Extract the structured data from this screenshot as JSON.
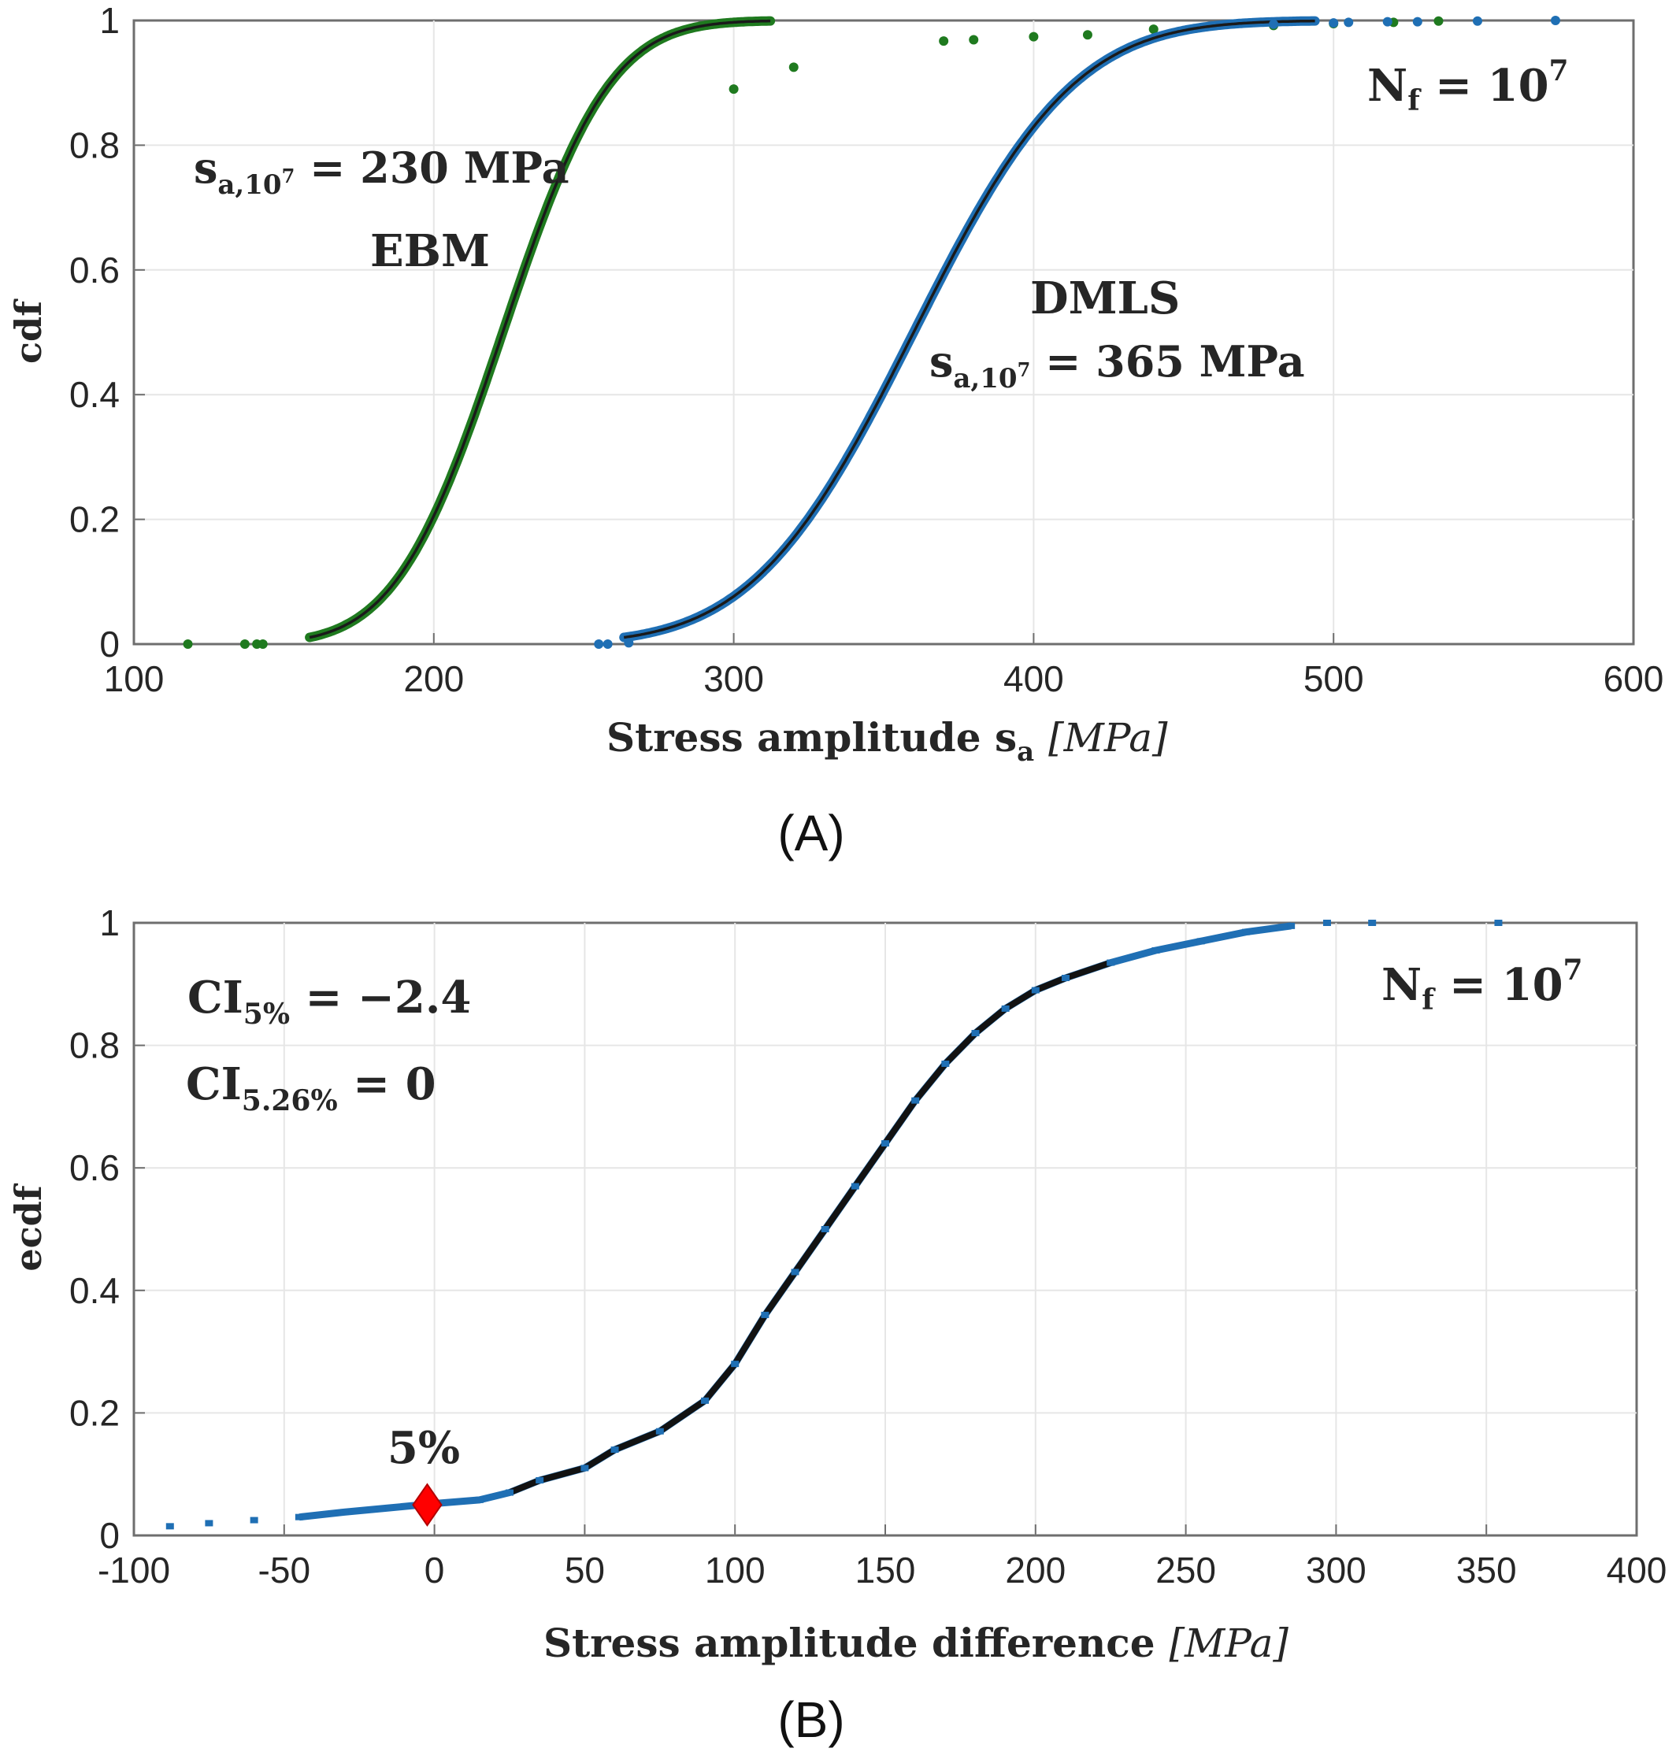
{
  "chart_data": [
    {
      "type": "scatter",
      "panel_label": "(A)",
      "xlabel": "Stress amplitude s",
      "xlabel_sub": "a",
      "xlabel_unit": "[MPa]",
      "ylabel": "cdf",
      "xlim": [
        100,
        600
      ],
      "ylim": [
        0,
        1
      ],
      "x_ticks": [
        100,
        200,
        300,
        400,
        500,
        600
      ],
      "y_ticks": [
        0,
        0.2,
        0.4,
        0.6,
        0.8,
        1
      ],
      "x_tick_labels": [
        "100",
        "200",
        "300",
        "400",
        "500",
        "600"
      ],
      "y_tick_labels": [
        "0",
        "0.2",
        "0.4",
        "0.6",
        "0.8",
        "1"
      ],
      "grid": true,
      "annotations": {
        "nf": {
          "main": "N",
          "sub": "f",
          "eq": " = 10",
          "sup": "7"
        },
        "ebm_value": {
          "main": "s",
          "sub": "a,10",
          "subsup": "7",
          "eq": " = 230 MPa"
        },
        "ebm_label": "EBM",
        "dmls_label": "DMLS",
        "dmls_value": {
          "main": "s",
          "sub": "a,10",
          "subsup": "7",
          "eq": " = 365 MPa"
        }
      },
      "series": [
        {
          "name": "EBM",
          "color": "#1f7a1f",
          "distribution": {
            "mean": 223,
            "std": 28
          },
          "outliers": [
            [
              118,
              0.0
            ],
            [
              137,
              0.0
            ],
            [
              141,
              0.0
            ],
            [
              143,
              0.0
            ],
            [
              300,
              0.89
            ],
            [
              320,
              0.925
            ],
            [
              370,
              0.967
            ],
            [
              380,
              0.969
            ],
            [
              400,
              0.974
            ],
            [
              418,
              0.977
            ],
            [
              440,
              0.986
            ],
            [
              480,
              0.992
            ],
            [
              500,
              0.995
            ],
            [
              520,
              0.997
            ],
            [
              535,
              0.999
            ]
          ]
        },
        {
          "name": "DMLS",
          "color": "#1f6fb4",
          "distribution": {
            "mean": 360,
            "std": 42
          },
          "outliers": [
            [
              255,
              0.0
            ],
            [
              258,
              0.0
            ],
            [
              265,
              0.002
            ],
            [
              480,
              0.994
            ],
            [
              500,
              0.996
            ],
            [
              505,
              0.997
            ],
            [
              518,
              0.998
            ],
            [
              528,
              0.998
            ],
            [
              548,
              0.999
            ],
            [
              574,
              1.0
            ]
          ]
        }
      ]
    },
    {
      "type": "scatter",
      "panel_label": "(B)",
      "xlabel": "Stress amplitude difference",
      "xlabel_unit": "[MPa]",
      "ylabel": "ecdf",
      "xlim": [
        -100,
        400
      ],
      "ylim": [
        0,
        1
      ],
      "x_ticks": [
        -100,
        -50,
        0,
        50,
        100,
        150,
        200,
        250,
        300,
        350,
        400
      ],
      "y_ticks": [
        0,
        0.2,
        0.4,
        0.6,
        0.8,
        1
      ],
      "x_tick_labels": [
        "-100",
        "-50",
        "0",
        "50",
        "100",
        "150",
        "200",
        "250",
        "300",
        "350",
        "400"
      ],
      "y_tick_labels": [
        "0",
        "0.2",
        "0.4",
        "0.6",
        "0.8",
        "1"
      ],
      "grid": true,
      "annotations": {
        "nf": {
          "main": "N",
          "sub": "f",
          "eq": " = 10",
          "sup": "7"
        },
        "ci5": {
          "main": "CI",
          "sub": "5%",
          "eq": " = −2.4"
        },
        "ci526": {
          "main": "CI",
          "sub": "5.26%",
          "eq": " = 0"
        },
        "marker_label": "5%"
      },
      "marker": {
        "x": -2.4,
        "y": 0.05,
        "color": "#ff0000",
        "shape": "diamond"
      },
      "series": [
        {
          "name": "ecdf",
          "color": "#1f6fb4",
          "curve": [
            [
              -88,
              0.015
            ],
            [
              -75,
              0.02
            ],
            [
              -60,
              0.025
            ],
            [
              -45,
              0.03
            ],
            [
              -30,
              0.038
            ],
            [
              -15,
              0.045
            ],
            [
              0,
              0.052
            ],
            [
              15,
              0.058
            ],
            [
              25,
              0.07
            ],
            [
              35,
              0.09
            ],
            [
              50,
              0.11
            ],
            [
              60,
              0.14
            ],
            [
              75,
              0.17
            ],
            [
              90,
              0.22
            ],
            [
              100,
              0.28
            ],
            [
              110,
              0.36
            ],
            [
              120,
              0.43
            ],
            [
              130,
              0.5
            ],
            [
              140,
              0.57
            ],
            [
              150,
              0.64
            ],
            [
              160,
              0.71
            ],
            [
              170,
              0.77
            ],
            [
              180,
              0.82
            ],
            [
              190,
              0.86
            ],
            [
              200,
              0.89
            ],
            [
              210,
              0.91
            ],
            [
              225,
              0.935
            ],
            [
              240,
              0.955
            ],
            [
              255,
              0.97
            ],
            [
              270,
              0.985
            ],
            [
              285,
              0.995
            ],
            [
              297,
              1.0
            ],
            [
              312,
              1.0
            ],
            [
              354,
              1.0
            ]
          ]
        }
      ]
    }
  ]
}
